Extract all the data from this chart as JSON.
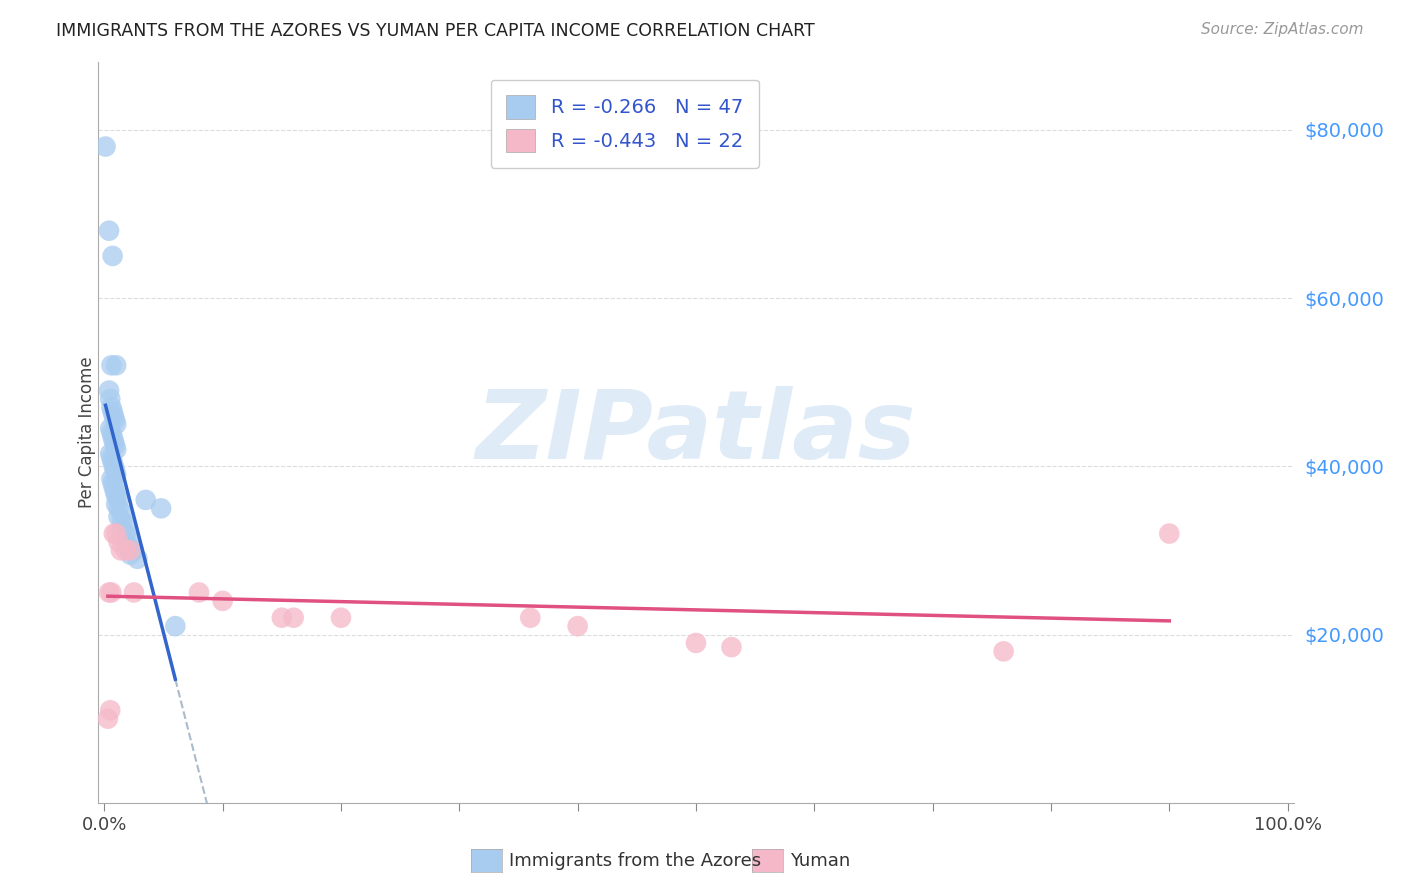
{
  "title": "IMMIGRANTS FROM THE AZORES VS YUMAN PER CAPITA INCOME CORRELATION CHART",
  "source": "Source: ZipAtlas.com",
  "ylabel": "Per Capita Income",
  "legend_label1": "Immigrants from the Azores",
  "legend_label2": "Yuman",
  "R1": "-0.266",
  "N1": "47",
  "R2": "-0.443",
  "N2": "22",
  "blue_color": "#A8CCF0",
  "pink_color": "#F5B8C8",
  "blue_line_color": "#3366CC",
  "pink_line_color": "#E05080",
  "gray_dash_color": "#AABBCC",
  "blue_scatter": [
    [
      0.001,
      78000
    ],
    [
      0.004,
      68000
    ],
    [
      0.007,
      65000
    ],
    [
      0.006,
      52000
    ],
    [
      0.01,
      52000
    ],
    [
      0.004,
      49000
    ],
    [
      0.005,
      48000
    ],
    [
      0.006,
      47000
    ],
    [
      0.007,
      46500
    ],
    [
      0.008,
      46000
    ],
    [
      0.009,
      45500
    ],
    [
      0.01,
      45000
    ],
    [
      0.005,
      44500
    ],
    [
      0.006,
      44000
    ],
    [
      0.007,
      43500
    ],
    [
      0.008,
      43000
    ],
    [
      0.009,
      42500
    ],
    [
      0.01,
      42000
    ],
    [
      0.005,
      41500
    ],
    [
      0.006,
      41000
    ],
    [
      0.007,
      40500
    ],
    [
      0.008,
      40000
    ],
    [
      0.009,
      39500
    ],
    [
      0.01,
      39000
    ],
    [
      0.006,
      38500
    ],
    [
      0.007,
      38000
    ],
    [
      0.008,
      37500
    ],
    [
      0.009,
      37000
    ],
    [
      0.01,
      36500
    ],
    [
      0.012,
      36000
    ],
    [
      0.01,
      35500
    ],
    [
      0.012,
      35000
    ],
    [
      0.015,
      34500
    ],
    [
      0.012,
      34000
    ],
    [
      0.015,
      33500
    ],
    [
      0.018,
      33000
    ],
    [
      0.015,
      32500
    ],
    [
      0.018,
      32000
    ],
    [
      0.02,
      31500
    ],
    [
      0.018,
      31000
    ],
    [
      0.02,
      30500
    ],
    [
      0.025,
      30000
    ],
    [
      0.022,
      29500
    ],
    [
      0.028,
      29000
    ],
    [
      0.035,
      36000
    ],
    [
      0.048,
      35000
    ],
    [
      0.06,
      21000
    ]
  ],
  "pink_scatter": [
    [
      0.003,
      10000
    ],
    [
      0.005,
      11000
    ],
    [
      0.004,
      25000
    ],
    [
      0.006,
      25000
    ],
    [
      0.008,
      32000
    ],
    [
      0.01,
      32000
    ],
    [
      0.012,
      31000
    ],
    [
      0.014,
      30000
    ],
    [
      0.018,
      30000
    ],
    [
      0.022,
      30000
    ],
    [
      0.025,
      25000
    ],
    [
      0.08,
      25000
    ],
    [
      0.1,
      24000
    ],
    [
      0.15,
      22000
    ],
    [
      0.16,
      22000
    ],
    [
      0.2,
      22000
    ],
    [
      0.36,
      22000
    ],
    [
      0.4,
      21000
    ],
    [
      0.5,
      19000
    ],
    [
      0.53,
      18500
    ],
    [
      0.76,
      18000
    ],
    [
      0.9,
      32000
    ]
  ],
  "ylim": [
    0,
    88000
  ],
  "xlim": [
    -0.005,
    1.005
  ],
  "yticks": [
    20000,
    40000,
    60000,
    80000
  ],
  "ytick_labels": [
    "$20,000",
    "$40,000",
    "$60,000",
    "$80,000"
  ],
  "xtick_positions": [
    0.0,
    0.1,
    0.2,
    0.3,
    0.4,
    0.5,
    0.6,
    0.7,
    0.8,
    0.9,
    1.0
  ],
  "watermark_text": "ZIPatlas",
  "figsize": [
    14.06,
    8.92
  ],
  "dpi": 100,
  "background_color": "#FFFFFF",
  "grid_color": "#DDDDDD",
  "title_color": "#222222",
  "source_color": "#999999",
  "ytick_color": "#4499FF",
  "legend_text_color": "#3355CC"
}
